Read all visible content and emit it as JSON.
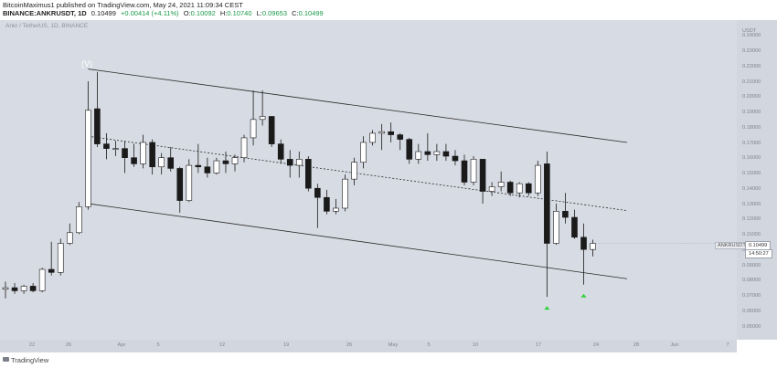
{
  "header": {
    "publisher_line": "BitcoinMaximus1 published on TradingView.com, May 24, 2021 11:09:34 CEST",
    "symbol": "BINANCE:ANKRUSDT, 1D",
    "price": "0.10499",
    "change": "+0.00414 (+4.11%)",
    "open_label": "O:",
    "open": "0.10092",
    "high_label": "H:",
    "high": "0.10740",
    "low_label": "L:",
    "low": "0.09653",
    "close_label": "C:",
    "close": "0.10499"
  },
  "chart_title": "Ankr / TetherUS, 1D, BINANCE",
  "wave_label": "(V)",
  "price_axis": {
    "currency": "USDT",
    "ticks": [
      "0.24000",
      "0.23000",
      "0.22000",
      "0.21000",
      "0.20000",
      "0.19000",
      "0.18000",
      "0.17000",
      "0.16000",
      "0.15000",
      "0.14000",
      "0.13000",
      "0.12000",
      "0.11000",
      "0.10000",
      "0.09000",
      "0.08000",
      "0.07000",
      "0.06000",
      "0.05000"
    ]
  },
  "time_axis": {
    "ticks": [
      "22",
      "26",
      "Apr",
      "5",
      "12",
      "19",
      "26",
      "May",
      "5",
      "10",
      "17",
      "24",
      "28",
      "Jun",
      "7"
    ]
  },
  "price_tag": {
    "symbol": "ANKRUSDT",
    "value": "0.10499",
    "countdown": "14:50:27"
  },
  "footer": {
    "brand": "TradingView"
  },
  "colors": {
    "background": "#d7dbe3",
    "bull": "#ffffff",
    "bear": "#1a1a1a",
    "marker": "#2fd13c"
  },
  "chart_data": {
    "type": "candlestick",
    "candles": [
      {
        "o": 0.075,
        "h": 0.08,
        "l": 0.069,
        "c": 0.076
      },
      {
        "o": 0.076,
        "h": 0.079,
        "l": 0.072,
        "c": 0.074
      },
      {
        "o": 0.074,
        "h": 0.078,
        "l": 0.072,
        "c": 0.077
      },
      {
        "o": 0.077,
        "h": 0.079,
        "l": 0.073,
        "c": 0.074
      },
      {
        "o": 0.074,
        "h": 0.089,
        "l": 0.073,
        "c": 0.088
      },
      {
        "o": 0.088,
        "h": 0.106,
        "l": 0.084,
        "c": 0.086
      },
      {
        "o": 0.086,
        "h": 0.108,
        "l": 0.084,
        "c": 0.105
      },
      {
        "o": 0.105,
        "h": 0.118,
        "l": 0.104,
        "c": 0.112
      },
      {
        "o": 0.112,
        "h": 0.132,
        "l": 0.111,
        "c": 0.129
      },
      {
        "o": 0.129,
        "h": 0.211,
        "l": 0.127,
        "c": 0.192
      },
      {
        "o": 0.193,
        "h": 0.217,
        "l": 0.168,
        "c": 0.17
      },
      {
        "o": 0.17,
        "h": 0.177,
        "l": 0.16,
        "c": 0.167
      },
      {
        "o": 0.167,
        "h": 0.172,
        "l": 0.162,
        "c": 0.167
      },
      {
        "o": 0.167,
        "h": 0.172,
        "l": 0.151,
        "c": 0.161
      },
      {
        "o": 0.161,
        "h": 0.17,
        "l": 0.155,
        "c": 0.157
      },
      {
        "o": 0.157,
        "h": 0.176,
        "l": 0.154,
        "c": 0.171
      },
      {
        "o": 0.171,
        "h": 0.173,
        "l": 0.15,
        "c": 0.155
      },
      {
        "o": 0.155,
        "h": 0.164,
        "l": 0.15,
        "c": 0.161
      },
      {
        "o": 0.161,
        "h": 0.168,
        "l": 0.152,
        "c": 0.154
      },
      {
        "o": 0.154,
        "h": 0.155,
        "l": 0.125,
        "c": 0.133
      },
      {
        "o": 0.133,
        "h": 0.16,
        "l": 0.132,
        "c": 0.156
      },
      {
        "o": 0.156,
        "h": 0.17,
        "l": 0.151,
        "c": 0.155
      },
      {
        "o": 0.155,
        "h": 0.161,
        "l": 0.148,
        "c": 0.151
      },
      {
        "o": 0.151,
        "h": 0.161,
        "l": 0.15,
        "c": 0.159
      },
      {
        "o": 0.159,
        "h": 0.165,
        "l": 0.151,
        "c": 0.157
      },
      {
        "o": 0.157,
        "h": 0.163,
        "l": 0.152,
        "c": 0.161
      },
      {
        "o": 0.161,
        "h": 0.176,
        "l": 0.158,
        "c": 0.174
      },
      {
        "o": 0.174,
        "h": 0.205,
        "l": 0.169,
        "c": 0.186
      },
      {
        "o": 0.186,
        "h": 0.205,
        "l": 0.182,
        "c": 0.188
      },
      {
        "o": 0.188,
        "h": 0.188,
        "l": 0.168,
        "c": 0.17
      },
      {
        "o": 0.17,
        "h": 0.173,
        "l": 0.157,
        "c": 0.16
      },
      {
        "o": 0.16,
        "h": 0.166,
        "l": 0.148,
        "c": 0.156
      },
      {
        "o": 0.156,
        "h": 0.165,
        "l": 0.148,
        "c": 0.16
      },
      {
        "o": 0.16,
        "h": 0.162,
        "l": 0.139,
        "c": 0.141
      },
      {
        "o": 0.141,
        "h": 0.144,
        "l": 0.115,
        "c": 0.135
      },
      {
        "o": 0.135,
        "h": 0.14,
        "l": 0.124,
        "c": 0.126
      },
      {
        "o": 0.126,
        "h": 0.134,
        "l": 0.124,
        "c": 0.128
      },
      {
        "o": 0.128,
        "h": 0.15,
        "l": 0.126,
        "c": 0.147
      },
      {
        "o": 0.147,
        "h": 0.161,
        "l": 0.143,
        "c": 0.158
      },
      {
        "o": 0.158,
        "h": 0.175,
        "l": 0.154,
        "c": 0.171
      },
      {
        "o": 0.171,
        "h": 0.179,
        "l": 0.169,
        "c": 0.177
      },
      {
        "o": 0.177,
        "h": 0.183,
        "l": 0.166,
        "c": 0.178
      },
      {
        "o": 0.178,
        "h": 0.184,
        "l": 0.171,
        "c": 0.176
      },
      {
        "o": 0.176,
        "h": 0.177,
        "l": 0.166,
        "c": 0.173
      },
      {
        "o": 0.173,
        "h": 0.174,
        "l": 0.157,
        "c": 0.16
      },
      {
        "o": 0.16,
        "h": 0.17,
        "l": 0.157,
        "c": 0.165
      },
      {
        "o": 0.165,
        "h": 0.177,
        "l": 0.159,
        "c": 0.163
      },
      {
        "o": 0.163,
        "h": 0.17,
        "l": 0.159,
        "c": 0.165
      },
      {
        "o": 0.165,
        "h": 0.17,
        "l": 0.159,
        "c": 0.162
      },
      {
        "o": 0.162,
        "h": 0.166,
        "l": 0.156,
        "c": 0.159
      },
      {
        "o": 0.159,
        "h": 0.163,
        "l": 0.143,
        "c": 0.145
      },
      {
        "o": 0.145,
        "h": 0.162,
        "l": 0.143,
        "c": 0.16
      },
      {
        "o": 0.16,
        "h": 0.16,
        "l": 0.131,
        "c": 0.139
      },
      {
        "o": 0.139,
        "h": 0.145,
        "l": 0.136,
        "c": 0.142
      },
      {
        "o": 0.142,
        "h": 0.152,
        "l": 0.139,
        "c": 0.145
      },
      {
        "o": 0.145,
        "h": 0.146,
        "l": 0.136,
        "c": 0.138
      },
      {
        "o": 0.138,
        "h": 0.145,
        "l": 0.135,
        "c": 0.144
      },
      {
        "o": 0.144,
        "h": 0.145,
        "l": 0.136,
        "c": 0.138
      },
      {
        "o": 0.138,
        "h": 0.159,
        "l": 0.136,
        "c": 0.156
      },
      {
        "o": 0.157,
        "h": 0.165,
        "l": 0.07,
        "c": 0.105
      },
      {
        "o": 0.105,
        "h": 0.131,
        "l": 0.104,
        "c": 0.126
      },
      {
        "o": 0.126,
        "h": 0.138,
        "l": 0.118,
        "c": 0.122
      },
      {
        "o": 0.122,
        "h": 0.127,
        "l": 0.108,
        "c": 0.109
      },
      {
        "o": 0.109,
        "h": 0.118,
        "l": 0.078,
        "c": 0.101
      },
      {
        "o": 0.101,
        "h": 0.1074,
        "l": 0.0965,
        "c": 0.105
      }
    ],
    "channel_upper": [
      [
        9,
        0.219
      ],
      [
        64,
        0.174
      ]
    ],
    "channel_lower": [
      [
        9,
        0.131
      ],
      [
        64,
        0.085
      ]
    ],
    "channel_mid": [
      [
        9,
        0.175
      ],
      [
        64,
        0.1295
      ]
    ],
    "markers": [
      59,
      63
    ],
    "ylim": [
      0.045,
      0.245
    ],
    "last_price": 0.10499
  }
}
